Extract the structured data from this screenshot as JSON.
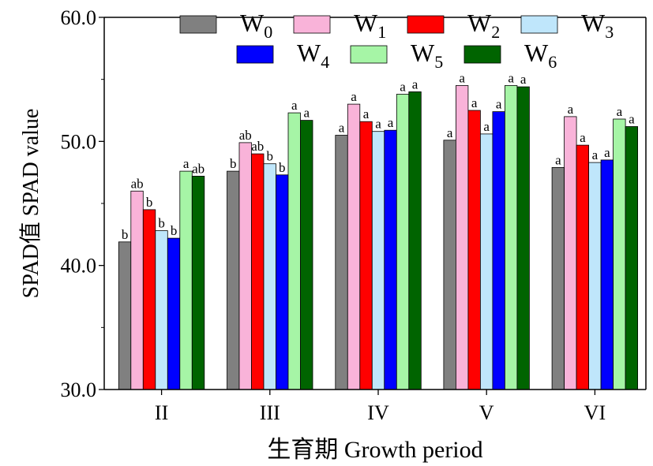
{
  "chart_data": {
    "type": "bar",
    "xlabel": "生育期 Growth period",
    "ylabel": "SPAD值 SPAD value",
    "ylim": [
      30,
      60
    ],
    "yticks": [
      "30.0",
      "40.0",
      "50.0",
      "60.0"
    ],
    "grid": false,
    "legend_position": "top",
    "categories": [
      "II",
      "III",
      "IV",
      "V",
      "VI"
    ],
    "series": [
      {
        "name": "W",
        "sub": "0",
        "color": "#808080",
        "values": [
          41.9,
          47.6,
          50.5,
          50.1,
          47.9
        ],
        "labels": [
          "b",
          "b",
          "a",
          "a",
          "a"
        ]
      },
      {
        "name": "W",
        "sub": "1",
        "color": "#f9b3d9",
        "values": [
          46.0,
          49.9,
          53.0,
          54.5,
          52.0
        ],
        "labels": [
          "ab",
          "ab",
          "a",
          "a",
          "a"
        ]
      },
      {
        "name": "W",
        "sub": "2",
        "color": "#ff0000",
        "values": [
          44.5,
          49.0,
          51.6,
          52.5,
          49.7
        ],
        "labels": [
          "b",
          "ab",
          "a",
          "a",
          "a"
        ]
      },
      {
        "name": "W",
        "sub": "3",
        "color": "#bfe6fb",
        "values": [
          42.8,
          48.2,
          50.8,
          50.6,
          48.3
        ],
        "labels": [
          "b",
          "b",
          "a",
          "a",
          "a"
        ]
      },
      {
        "name": "W",
        "sub": "4",
        "color": "#0000ff",
        "values": [
          42.2,
          47.3,
          50.9,
          52.4,
          48.5
        ],
        "labels": [
          "b",
          "b",
          "a",
          "a",
          "a"
        ]
      },
      {
        "name": "W",
        "sub": "5",
        "color": "#a6f5a6",
        "values": [
          47.6,
          52.3,
          53.8,
          54.5,
          51.8
        ],
        "labels": [
          "a",
          "a",
          "a",
          "a",
          "a"
        ]
      },
      {
        "name": "W",
        "sub": "6",
        "color": "#006400",
        "values": [
          47.2,
          51.7,
          54.0,
          54.4,
          51.2
        ],
        "labels": [
          "ab",
          "a",
          "a",
          "a",
          "a"
        ]
      }
    ]
  }
}
